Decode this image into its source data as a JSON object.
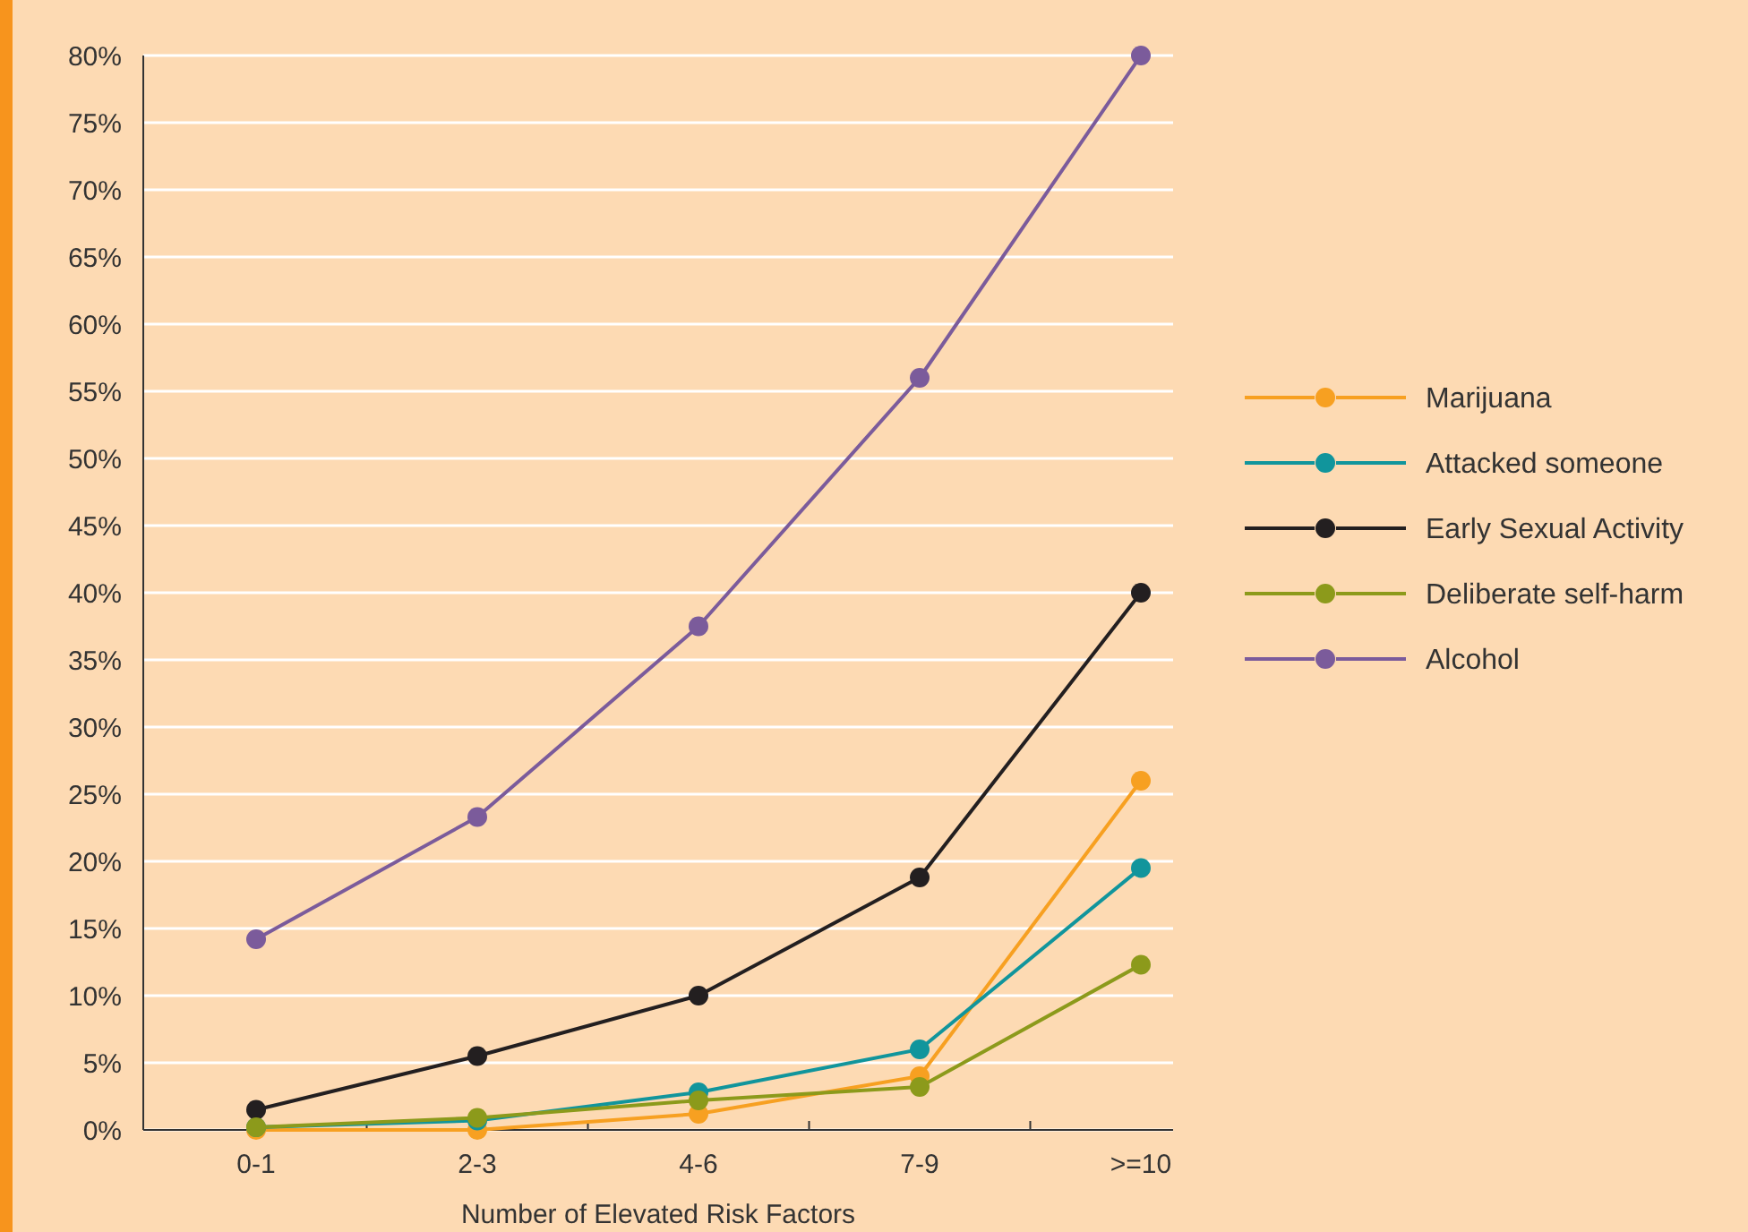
{
  "chart_data": {
    "type": "line",
    "xlabel": "Number of Elevated Risk Factors",
    "categories": [
      "0-1",
      "2-3",
      "4-6",
      "7-9",
      ">=10"
    ],
    "series": [
      {
        "name": "Marijuana",
        "color": "#f7a021",
        "values": [
          0,
          0,
          1.2,
          4,
          26
        ]
      },
      {
        "name": "Attacked someone",
        "color": "#11959c",
        "values": [
          0.2,
          0.7,
          2.8,
          6,
          19.5
        ]
      },
      {
        "name": "Early Sexual Activity",
        "color": "#231f20",
        "values": [
          1.5,
          5.5,
          10,
          18.8,
          40
        ]
      },
      {
        "name": "Deliberate self-harm",
        "color": "#8c9a1b",
        "values": [
          0.2,
          0.9,
          2.2,
          3.2,
          12.3
        ]
      },
      {
        "name": "Alcohol",
        "color": "#7b5b9b",
        "values": [
          14.2,
          23.3,
          37.5,
          56,
          80
        ]
      }
    ],
    "ylim": [
      0,
      80
    ],
    "yticks": [
      {
        "value": 0,
        "label": "0%"
      },
      {
        "value": 5,
        "label": "5%"
      },
      {
        "value": 10,
        "label": "10%"
      },
      {
        "value": 15,
        "label": "15%"
      },
      {
        "value": 20,
        "label": "20%"
      },
      {
        "value": 25,
        "label": "25%"
      },
      {
        "value": 30,
        "label": "30%"
      },
      {
        "value": 35,
        "label": "35%"
      },
      {
        "value": 40,
        "label": "40%"
      },
      {
        "value": 45,
        "label": "45%"
      },
      {
        "value": 50,
        "label": "50%"
      },
      {
        "value": 55,
        "label": "55%"
      },
      {
        "value": 60,
        "label": "60%"
      },
      {
        "value": 65,
        "label": "65%"
      },
      {
        "value": 70,
        "label": "70%"
      },
      {
        "value": 75,
        "label": "75%"
      },
      {
        "value": 80,
        "label": "80%"
      }
    ],
    "grid": "y",
    "legend": "right",
    "marker": "circle",
    "line_style": "solid"
  }
}
